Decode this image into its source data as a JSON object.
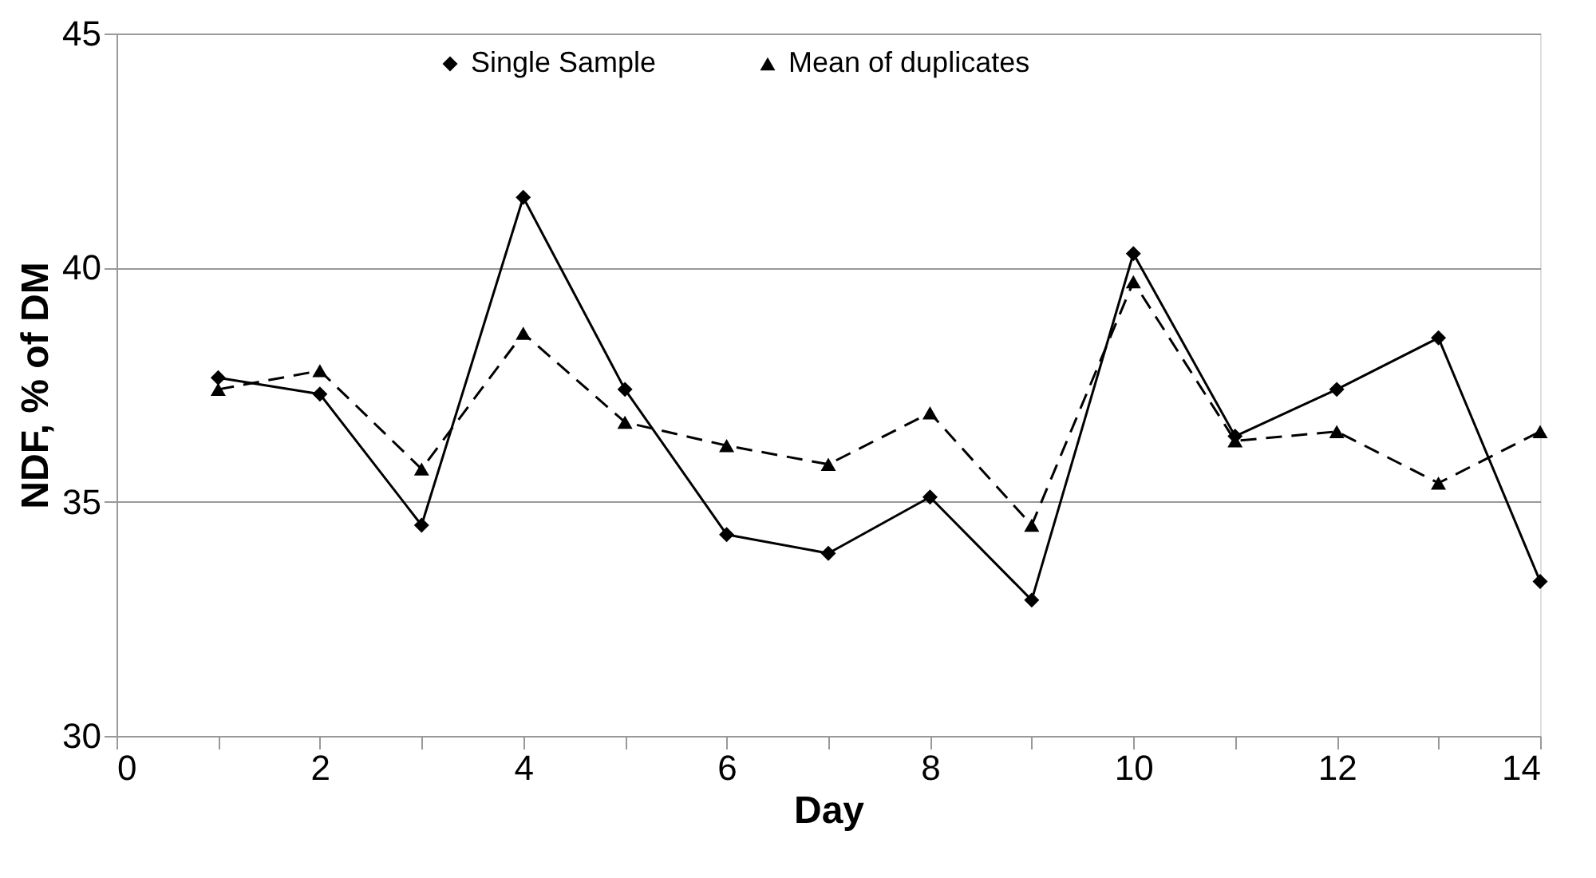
{
  "chart_data": {
    "type": "line",
    "xlabel": "Day",
    "ylabel": "NDF, % of DM",
    "x": [
      1,
      2,
      3,
      4,
      5,
      6,
      7,
      8,
      9,
      10,
      11,
      12,
      13,
      14
    ],
    "series": [
      {
        "name": "Single Sample",
        "color": "#000000",
        "marker": "diamond",
        "line_style": "solid",
        "values": [
          37.65,
          37.3,
          34.5,
          41.5,
          37.4,
          34.3,
          33.9,
          35.1,
          32.9,
          40.3,
          36.4,
          37.4,
          38.5,
          33.3
        ]
      },
      {
        "name": "Mean of duplicates",
        "color": "#000000",
        "marker": "triangle",
        "line_style": "dashed",
        "values": [
          37.4,
          37.8,
          35.7,
          38.6,
          36.7,
          36.2,
          35.8,
          36.9,
          34.5,
          39.7,
          36.3,
          36.5,
          35.4,
          36.5
        ]
      }
    ],
    "xlim": [
      0,
      14
    ],
    "xticks": [
      0,
      {
        "value": 1,
        "label": null
      },
      2,
      {
        "value": 3,
        "label": null
      },
      4,
      {
        "value": 5,
        "label": null
      },
      6,
      {
        "value": 7,
        "label": null
      },
      8,
      {
        "value": 9,
        "label": null
      },
      10,
      {
        "value": 11,
        "label": null
      },
      12,
      {
        "value": 13,
        "label": null
      },
      14
    ],
    "ylim": [
      30,
      45
    ],
    "yticks": [
      30,
      35,
      40,
      45
    ],
    "grid": "y",
    "legend": "top"
  }
}
